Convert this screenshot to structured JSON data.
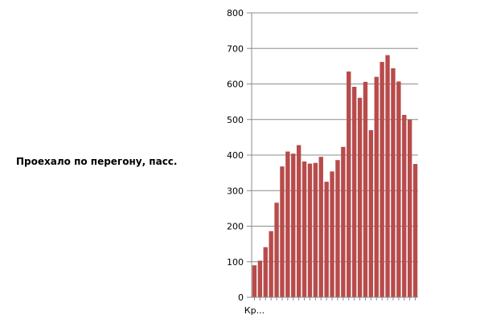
{
  "chart_data": {
    "type": "bar",
    "ylabel": "Проехало по перегону, пасс.",
    "ylim": [
      0,
      800
    ],
    "yticks": [
      0,
      100,
      200,
      300,
      400,
      500,
      600,
      700,
      800
    ],
    "grid": true,
    "legend": "none",
    "bar_color": "#b84b4b",
    "categories": [
      "Кр...",
      "",
      "",
      "",
      "",
      "",
      "",
      "",
      "",
      "",
      "",
      "",
      "",
      "",
      "",
      "",
      "",
      "",
      "",
      "",
      "",
      "",
      "",
      "",
      "",
      "",
      "",
      "",
      "",
      ""
    ],
    "values": [
      90,
      103,
      141,
      186,
      266,
      368,
      410,
      404,
      428,
      382,
      376,
      378,
      395,
      325,
      354,
      386,
      423,
      635,
      592,
      561,
      606,
      470,
      620,
      662,
      681,
      644,
      607,
      513,
      500,
      375
    ]
  }
}
